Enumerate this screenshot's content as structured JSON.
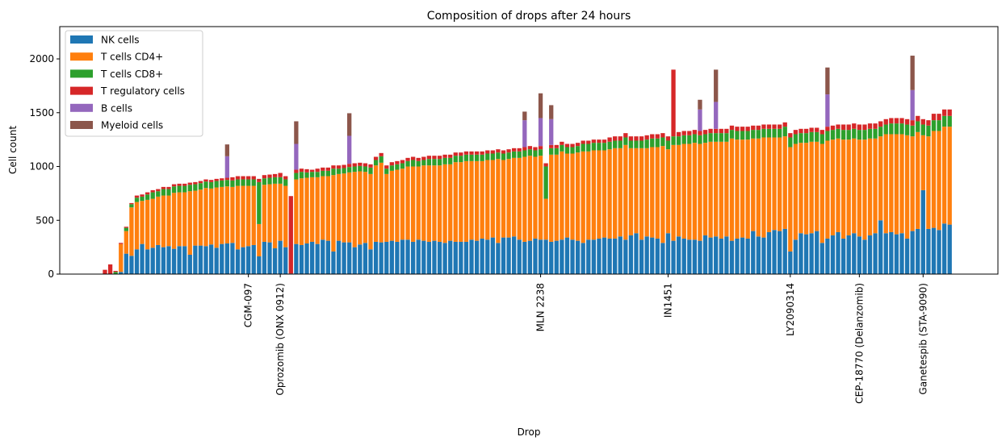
{
  "chart_data": {
    "type": "bar",
    "stacked": true,
    "title": "Composition of drops after 24 hours",
    "xlabel": "Drop",
    "ylabel": "Cell count",
    "ylim": [
      0,
      2300
    ],
    "yticks": [
      0,
      500,
      1000,
      1500,
      2000
    ],
    "bar_count": 160,
    "labeled_drops": [
      {
        "index": 27,
        "label": "CGM-097"
      },
      {
        "index": 33,
        "label": "Oprozomib (ONX 0912)"
      },
      {
        "index": 82,
        "label": "MLN 2238"
      },
      {
        "index": 106,
        "label": "IN1451"
      },
      {
        "index": 129,
        "label": "LY2090314"
      },
      {
        "index": 142,
        "label": "CEP-18770 (Delanzomib)"
      },
      {
        "index": 154,
        "label": "Ganetespib (STA-9090)"
      }
    ],
    "legend": {
      "placement": "top-left"
    },
    "series": [
      {
        "name": "NK cells",
        "color": "#1f77b4",
        "values": [
          0,
          0,
          0,
          20,
          190,
          170,
          230,
          280,
          230,
          245,
          270,
          250,
          260,
          235,
          260,
          260,
          180,
          265,
          265,
          260,
          275,
          245,
          280,
          285,
          290,
          230,
          250,
          260,
          270,
          165,
          300,
          295,
          240,
          310,
          250,
          5,
          280,
          270,
          285,
          300,
          280,
          320,
          310,
          210,
          310,
          295,
          295,
          250,
          275,
          290,
          230,
          300,
          295,
          300,
          310,
          300,
          320,
          320,
          300,
          320,
          310,
          300,
          310,
          300,
          290,
          310,
          300,
          300,
          300,
          320,
          310,
          330,
          320,
          340,
          290,
          340,
          340,
          350,
          320,
          300,
          310,
          330,
          320,
          320,
          300,
          310,
          320,
          340,
          320,
          310,
          290,
          320,
          320,
          330,
          340,
          330,
          330,
          350,
          320,
          360,
          380,
          320,
          350,
          340,
          330,
          290,
          380,
          310,
          350,
          330,
          320,
          320,
          310,
          360,
          340,
          350,
          330,
          350,
          310,
          330,
          340,
          330,
          400,
          350,
          340,
          390,
          410,
          400,
          420,
          210,
          320,
          380,
          370,
          380,
          400,
          290,
          330,
          360,
          390,
          330,
          360,
          380,
          350,
          320,
          360,
          380,
          500,
          380,
          390,
          370,
          380,
          330,
          400,
          420,
          780,
          420,
          430,
          410,
          470,
          460
        ]
      },
      {
        "name": "T cells CD4+",
        "color": "#ff7f0e",
        "values": [
          0,
          0,
          0,
          260,
          210,
          450,
          440,
          400,
          460,
          455,
          450,
          480,
          470,
          520,
          500,
          500,
          590,
          510,
          520,
          540,
          520,
          560,
          530,
          530,
          520,
          590,
          570,
          560,
          550,
          300,
          530,
          540,
          600,
          530,
          570,
          0,
          600,
          620,
          610,
          600,
          620,
          590,
          600,
          710,
          620,
          640,
          650,
          700,
          680,
          660,
          700,
          710,
          740,
          630,
          650,
          670,
          660,
          680,
          700,
          680,
          700,
          710,
          700,
          710,
          730,
          710,
          740,
          740,
          750,
          730,
          740,
          720,
          740,
          720,
          780,
          720,
          730,
          730,
          760,
          790,
          790,
          760,
          780,
          380,
          810,
          800,
          820,
          780,
          800,
          820,
          850,
          820,
          830,
          820,
          810,
          830,
          840,
          820,
          880,
          810,
          790,
          850,
          820,
          840,
          850,
          900,
          780,
          890,
          850,
          880,
          890,
          900,
          900,
          860,
          890,
          880,
          900,
          880,
          950,
          920,
          910,
          920,
          860,
          910,
          930,
          880,
          860,
          870,
          860,
          970,
          890,
          840,
          850,
          850,
          830,
          920,
          910,
          890,
          870,
          920,
          890,
          880,
          900,
          930,
          900,
          880,
          780,
          920,
          910,
          930,
          920,
          960,
          880,
          900,
          510,
          860,
          900,
          920,
          900,
          910
        ]
      },
      {
        "name": "T cells CD8+",
        "color": "#2ca02c",
        "values": [
          0,
          0,
          20,
          0,
          30,
          30,
          40,
          40,
          50,
          60,
          50,
          60,
          60,
          60,
          60,
          60,
          60,
          60,
          60,
          60,
          60,
          60,
          60,
          60,
          60,
          60,
          60,
          60,
          60,
          390,
          60,
          60,
          60,
          60,
          60,
          0,
          60,
          60,
          50,
          50,
          50,
          50,
          50,
          60,
          50,
          50,
          50,
          50,
          50,
          50,
          60,
          50,
          60,
          50,
          50,
          50,
          50,
          50,
          60,
          50,
          50,
          60,
          60,
          60,
          60,
          60,
          60,
          60,
          60,
          60,
          60,
          60,
          60,
          60,
          60,
          60,
          60,
          60,
          60,
          60,
          60,
          60,
          60,
          300,
          60,
          60,
          60,
          60,
          60,
          60,
          70,
          70,
          70,
          70,
          70,
          70,
          70,
          70,
          70,
          70,
          70,
          70,
          80,
          80,
          80,
          80,
          80,
          80,
          80,
          80,
          80,
          80,
          80,
          80,
          80,
          80,
          80,
          80,
          80,
          80,
          80,
          80,
          80,
          80,
          80,
          80,
          80,
          80,
          90,
          90,
          90,
          90,
          90,
          90,
          90,
          90,
          90,
          90,
          90,
          90,
          90,
          90,
          90,
          90,
          90,
          90,
          90,
          90,
          100,
          100,
          100,
          100,
          100,
          100,
          100,
          100,
          100,
          100,
          100,
          100
        ]
      },
      {
        "name": "T regulatory cells",
        "color": "#d62728",
        "values": [
          40,
          90,
          10,
          10,
          10,
          10,
          20,
          20,
          20,
          20,
          20,
          20,
          20,
          20,
          20,
          20,
          20,
          20,
          20,
          20,
          20,
          20,
          20,
          20,
          30,
          30,
          30,
          30,
          30,
          30,
          30,
          30,
          30,
          40,
          30,
          720,
          30,
          30,
          30,
          20,
          30,
          30,
          30,
          30,
          30,
          30,
          30,
          30,
          30,
          30,
          30,
          30,
          30,
          30,
          30,
          30,
          30,
          30,
          30,
          30,
          30,
          30,
          30,
          30,
          30,
          30,
          30,
          30,
          30,
          30,
          30,
          30,
          30,
          30,
          30,
          30,
          30,
          30,
          30,
          30,
          30,
          30,
          30,
          30,
          30,
          30,
          30,
          30,
          30,
          30,
          30,
          30,
          30,
          30,
          30,
          40,
          40,
          40,
          40,
          40,
          40,
          40,
          40,
          40,
          40,
          40,
          40,
          620,
          40,
          40,
          40,
          40,
          40,
          40,
          40,
          40,
          40,
          40,
          40,
          40,
          40,
          40,
          40,
          40,
          40,
          40,
          40,
          40,
          40,
          40,
          40,
          40,
          40,
          40,
          40,
          40,
          40,
          40,
          40,
          50,
          50,
          50,
          50,
          50,
          50,
          50,
          50,
          50,
          50,
          50,
          50,
          50,
          50,
          50,
          50,
          50,
          60,
          60,
          60,
          60
        ]
      },
      {
        "name": "B cells",
        "color": "#9467bd",
        "values": [
          0,
          0,
          0,
          0,
          0,
          0,
          0,
          0,
          0,
          0,
          0,
          0,
          0,
          0,
          0,
          0,
          0,
          0,
          0,
          0,
          0,
          0,
          0,
          200,
          0,
          0,
          0,
          0,
          0,
          0,
          0,
          0,
          0,
          0,
          0,
          0,
          240,
          0,
          0,
          0,
          0,
          0,
          0,
          0,
          0,
          0,
          260,
          0,
          0,
          0,
          0,
          0,
          0,
          0,
          0,
          0,
          0,
          0,
          0,
          0,
          0,
          0,
          0,
          0,
          0,
          0,
          0,
          0,
          0,
          0,
          0,
          0,
          0,
          0,
          0,
          0,
          0,
          0,
          0,
          250,
          0,
          0,
          260,
          0,
          240,
          0,
          0,
          0,
          0,
          0,
          0,
          0,
          0,
          0,
          0,
          0,
          0,
          0,
          0,
          0,
          0,
          0,
          0,
          0,
          0,
          0,
          0,
          0,
          0,
          0,
          0,
          0,
          200,
          0,
          0,
          250,
          0,
          0,
          0,
          0,
          0,
          0,
          0,
          0,
          0,
          0,
          0,
          0,
          0,
          0,
          0,
          0,
          0,
          0,
          0,
          0,
          300,
          0,
          0,
          0,
          0,
          0,
          0,
          0,
          0,
          0,
          0,
          0,
          0,
          0,
          0,
          0,
          280,
          0,
          0,
          0,
          0,
          0,
          0,
          0,
          0
        ]
      },
      {
        "name": "Myeloid cells",
        "color": "#8c564b",
        "values": [
          0,
          0,
          0,
          0,
          0,
          0,
          0,
          0,
          0,
          0,
          0,
          0,
          0,
          0,
          0,
          0,
          0,
          0,
          0,
          0,
          0,
          0,
          0,
          110,
          0,
          0,
          0,
          0,
          0,
          0,
          0,
          0,
          0,
          0,
          0,
          0,
          210,
          0,
          0,
          0,
          0,
          0,
          0,
          0,
          0,
          0,
          210,
          0,
          0,
          0,
          0,
          0,
          0,
          0,
          0,
          0,
          0,
          0,
          0,
          0,
          0,
          0,
          0,
          0,
          0,
          0,
          0,
          0,
          0,
          0,
          0,
          0,
          0,
          0,
          0,
          0,
          0,
          0,
          0,
          80,
          0,
          0,
          230,
          0,
          130,
          0,
          0,
          0,
          0,
          0,
          0,
          0,
          0,
          0,
          0,
          0,
          0,
          0,
          0,
          0,
          0,
          0,
          0,
          0,
          0,
          0,
          0,
          0,
          0,
          0,
          0,
          0,
          90,
          0,
          0,
          300,
          0,
          0,
          0,
          0,
          0,
          0,
          0,
          0,
          0,
          0,
          0,
          0,
          0,
          0,
          0,
          0,
          0,
          0,
          0,
          0,
          250,
          0,
          0,
          0,
          0,
          0,
          0,
          0,
          0,
          0,
          0,
          0,
          0,
          0,
          0,
          0,
          320,
          0,
          0,
          0,
          0,
          0,
          0,
          0,
          0
        ]
      }
    ]
  }
}
